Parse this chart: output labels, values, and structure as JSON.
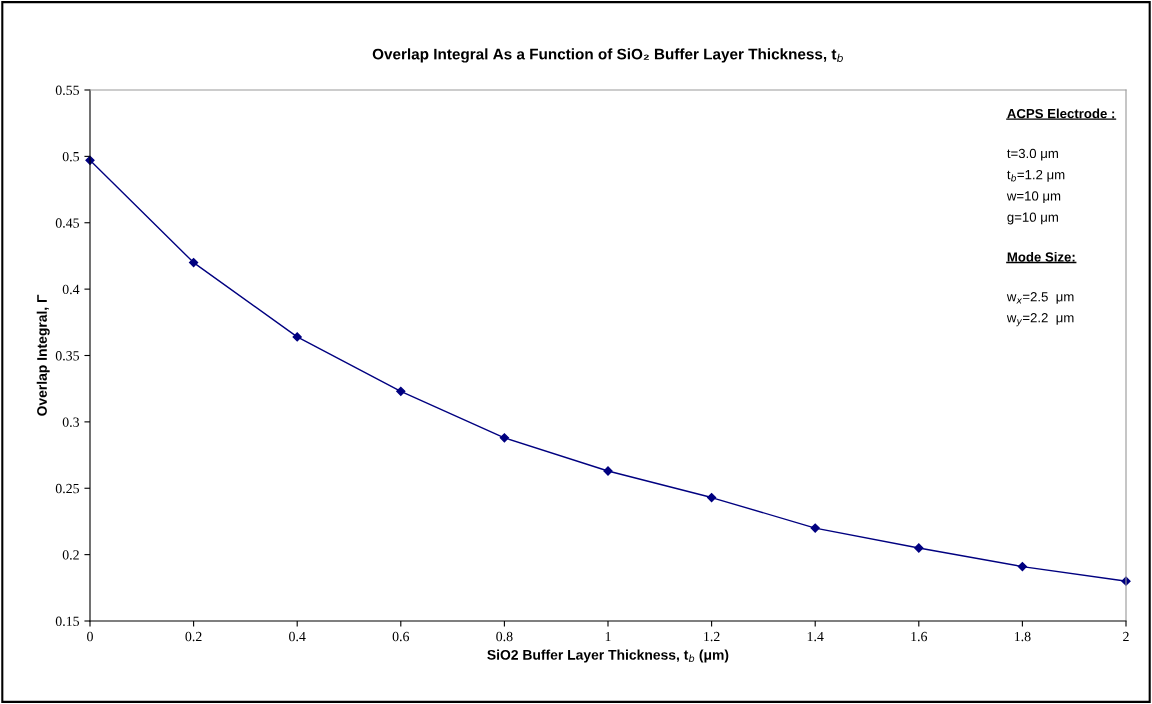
{
  "chart_data": {
    "type": "line",
    "title": "Overlap Integral As a Function of SiO₂ Buffer Layer Thickness, t$_{b}$",
    "xlabel": "SiO2 Buffer Layer Thickness, t$_{b}$ (μm)",
    "ylabel": "Overlap Integral, Γ",
    "x": [
      0,
      0.2,
      0.4,
      0.6,
      0.8,
      1,
      1.2,
      1.4,
      1.6,
      1.8,
      2
    ],
    "series": [
      {
        "color": "#000080",
        "values": [
          0.497,
          0.42,
          0.364,
          0.323,
          0.288,
          0.263,
          0.243,
          0.22,
          0.205,
          0.191,
          0.18
        ]
      }
    ],
    "xlim": [
      0,
      2
    ],
    "xticks": [
      0,
      0.2,
      0.4,
      0.6,
      0.8,
      1,
      1.2,
      1.4,
      1.6,
      1.8,
      2
    ],
    "ylim": [
      0.15,
      0.55
    ],
    "yticks": [
      0.15,
      0.2,
      0.25,
      0.3,
      0.35,
      0.4,
      0.45,
      0.5,
      0.55
    ],
    "grid": false,
    "legend": false,
    "marker": "diamond",
    "line_style": "solid",
    "annotations": [
      "ACPS Electrode :",
      "t=3.0 μm",
      "t$_{b}$=1.2 μm",
      "w=10 μm",
      "g=10 μm",
      "Mode Size:",
      "w$_{x}$=2.5  μm",
      "w$_{y}$=2.2  μm"
    ]
  }
}
